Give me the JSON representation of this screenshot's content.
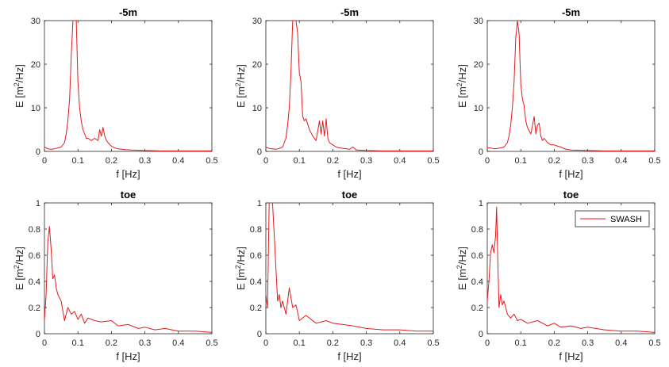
{
  "chart_data": [
    {
      "type": "line",
      "title": "-5m",
      "xlabel": "f [Hz]",
      "ylabel_base": "E [m",
      "ylabel_sup": "2",
      "ylabel_tail": "/Hz]",
      "xlim": [
        0,
        0.5
      ],
      "ylim": [
        0,
        30
      ],
      "xticks": [
        0,
        0.1,
        0.2,
        0.3,
        0.4,
        0.5
      ],
      "xticklabels": [
        "0",
        "0.1",
        "0.2",
        "0.3",
        "0.4",
        "0.5"
      ],
      "yticks": [
        0,
        10,
        20,
        30
      ],
      "yticklabels": [
        "0",
        "10",
        "20",
        "30"
      ],
      "grid": false,
      "legend": null,
      "series": [
        {
          "color": "#e41a1c",
          "x": [
            0,
            0.01,
            0.02,
            0.03,
            0.04,
            0.05,
            0.06,
            0.065,
            0.07,
            0.075,
            0.08,
            0.085,
            0.09,
            0.095,
            0.1,
            0.105,
            0.11,
            0.115,
            0.12,
            0.125,
            0.13,
            0.14,
            0.15,
            0.16,
            0.165,
            0.17,
            0.175,
            0.18,
            0.185,
            0.19,
            0.2,
            0.21,
            0.22,
            0.24,
            0.26,
            0.3,
            0.35,
            0.4,
            0.45,
            0.5
          ],
          "y": [
            1,
            0.6,
            0.5,
            0.6,
            0.8,
            1,
            2,
            4,
            7,
            12,
            22,
            30,
            30,
            30,
            16,
            10,
            7,
            5,
            4,
            3,
            3,
            2.5,
            3,
            2.5,
            5,
            3.5,
            5.5,
            3.5,
            2.5,
            2,
            1.2,
            0.8,
            0.6,
            0.4,
            0.3,
            0.2,
            0.1,
            0.1,
            0.1,
            0.1
          ]
        }
      ]
    },
    {
      "type": "line",
      "title": "-5m",
      "xlabel": "f [Hz]",
      "ylabel_base": "E [m",
      "ylabel_sup": "2",
      "ylabel_tail": "/Hz]",
      "xlim": [
        0,
        0.5
      ],
      "ylim": [
        0,
        30
      ],
      "xticks": [
        0,
        0.1,
        0.2,
        0.3,
        0.4,
        0.5
      ],
      "xticklabels": [
        "0",
        "0.1",
        "0.2",
        "0.3",
        "0.4",
        "0.5"
      ],
      "yticks": [
        0,
        10,
        20,
        30
      ],
      "yticklabels": [
        "0",
        "10",
        "20",
        "30"
      ],
      "grid": false,
      "legend": null,
      "series": [
        {
          "color": "#e41a1c",
          "x": [
            0,
            0.01,
            0.02,
            0.03,
            0.04,
            0.05,
            0.06,
            0.065,
            0.07,
            0.075,
            0.08,
            0.085,
            0.09,
            0.095,
            0.1,
            0.105,
            0.11,
            0.115,
            0.12,
            0.13,
            0.14,
            0.15,
            0.16,
            0.165,
            0.17,
            0.175,
            0.18,
            0.185,
            0.19,
            0.2,
            0.21,
            0.22,
            0.25,
            0.26,
            0.27,
            0.3,
            0.35,
            0.4,
            0.45,
            0.5
          ],
          "y": [
            1,
            0.7,
            0.6,
            0.5,
            0.7,
            1,
            3,
            6,
            10,
            18,
            30,
            30,
            30,
            27,
            18,
            16,
            8,
            7,
            7.5,
            5,
            3.5,
            2.5,
            7,
            4,
            7,
            3.5,
            7.5,
            3,
            2,
            1.5,
            1,
            0.8,
            0.5,
            1,
            0.3,
            0.2,
            0.1,
            0.1,
            0.1,
            0.1
          ]
        }
      ]
    },
    {
      "type": "line",
      "title": "-5m",
      "xlabel": "f [Hz]",
      "ylabel_base": "E [m",
      "ylabel_sup": "2",
      "ylabel_tail": "/Hz]",
      "xlim": [
        0,
        0.5
      ],
      "ylim": [
        0,
        30
      ],
      "xticks": [
        0,
        0.1,
        0.2,
        0.3,
        0.4,
        0.5
      ],
      "xticklabels": [
        "0",
        "0.1",
        "0.2",
        "0.3",
        "0.4",
        "0.5"
      ],
      "yticks": [
        0,
        10,
        20,
        30
      ],
      "yticklabels": [
        "0",
        "10",
        "20",
        "30"
      ],
      "grid": false,
      "legend": null,
      "series": [
        {
          "color": "#e41a1c",
          "x": [
            0,
            0.01,
            0.02,
            0.03,
            0.04,
            0.05,
            0.06,
            0.065,
            0.07,
            0.075,
            0.08,
            0.085,
            0.09,
            0.095,
            0.1,
            0.105,
            0.11,
            0.115,
            0.12,
            0.13,
            0.14,
            0.145,
            0.15,
            0.155,
            0.16,
            0.165,
            0.17,
            0.18,
            0.19,
            0.2,
            0.21,
            0.22,
            0.23,
            0.25,
            0.3,
            0.35,
            0.4,
            0.45,
            0.5
          ],
          "y": [
            0.8,
            0.8,
            0.6,
            0.7,
            0.8,
            1,
            2,
            3.5,
            6,
            10,
            16,
            26,
            30,
            27,
            15.5,
            12,
            10.5,
            7,
            5.5,
            4,
            8,
            4,
            6,
            6.5,
            3.5,
            2.5,
            3,
            2,
            1.5,
            1.5,
            1.2,
            1,
            0.6,
            0.3,
            0.2,
            0.1,
            0.1,
            0.1,
            0.1
          ]
        }
      ]
    },
    {
      "type": "line",
      "title": "toe",
      "xlabel": "f [Hz]",
      "ylabel_base": "E [m",
      "ylabel_sup": "2",
      "ylabel_tail": "/Hz]",
      "xlim": [
        0,
        0.5
      ],
      "ylim": [
        0,
        1
      ],
      "xticks": [
        0,
        0.1,
        0.2,
        0.3,
        0.4,
        0.5
      ],
      "xticklabels": [
        "0",
        "0.1",
        "0.2",
        "0.3",
        "0.4",
        "0.5"
      ],
      "yticks": [
        0,
        0.2,
        0.4,
        0.6,
        0.8,
        1
      ],
      "yticklabels": [
        "0",
        "0.2",
        "0.4",
        "0.6",
        "0.8",
        "1"
      ],
      "grid": false,
      "legend": null,
      "series": [
        {
          "color": "#e41a1c",
          "x": [
            0,
            0.005,
            0.01,
            0.015,
            0.02,
            0.025,
            0.03,
            0.035,
            0.04,
            0.05,
            0.06,
            0.07,
            0.08,
            0.09,
            0.1,
            0.11,
            0.12,
            0.13,
            0.15,
            0.17,
            0.2,
            0.22,
            0.25,
            0.28,
            0.3,
            0.33,
            0.36,
            0.4,
            0.45,
            0.5
          ],
          "y": [
            0.1,
            0.3,
            0.7,
            0.82,
            0.65,
            0.42,
            0.45,
            0.35,
            0.3,
            0.25,
            0.1,
            0.2,
            0.15,
            0.17,
            0.11,
            0.15,
            0.08,
            0.12,
            0.1,
            0.09,
            0.1,
            0.06,
            0.07,
            0.04,
            0.05,
            0.03,
            0.04,
            0.02,
            0.02,
            0.01
          ]
        }
      ]
    },
    {
      "type": "line",
      "title": "toe",
      "xlabel": "f [Hz]",
      "ylabel_base": "E [m",
      "ylabel_sup": "2",
      "ylabel_tail": "/Hz]",
      "xlim": [
        0,
        0.5
      ],
      "ylim": [
        0,
        1
      ],
      "xticks": [
        0,
        0.1,
        0.2,
        0.3,
        0.4,
        0.5
      ],
      "xticklabels": [
        "0",
        "0.1",
        "0.2",
        "0.3",
        "0.4",
        "0.5"
      ],
      "yticks": [
        0,
        0.2,
        0.4,
        0.6,
        0.8,
        1
      ],
      "yticklabels": [
        "0",
        "0.2",
        "0.4",
        "0.6",
        "0.8",
        "1"
      ],
      "grid": false,
      "legend": null,
      "series": [
        {
          "color": "#e41a1c",
          "x": [
            0,
            0.005,
            0.01,
            0.015,
            0.02,
            0.025,
            0.03,
            0.035,
            0.04,
            0.045,
            0.05,
            0.06,
            0.07,
            0.08,
            0.09,
            0.1,
            0.12,
            0.15,
            0.18,
            0.2,
            0.23,
            0.26,
            0.3,
            0.35,
            0.4,
            0.45,
            0.5
          ],
          "y": [
            0.3,
            0.2,
            1,
            1,
            1,
            0.75,
            0.5,
            0.25,
            0.3,
            0.2,
            0.25,
            0.15,
            0.35,
            0.2,
            0.22,
            0.1,
            0.14,
            0.08,
            0.1,
            0.08,
            0.07,
            0.06,
            0.04,
            0.03,
            0.03,
            0.02,
            0.02
          ]
        }
      ]
    },
    {
      "type": "line",
      "title": "toe",
      "xlabel": "f [Hz]",
      "ylabel_base": "E [m",
      "ylabel_sup": "2",
      "ylabel_tail": "/Hz]",
      "xlim": [
        0,
        0.5
      ],
      "ylim": [
        0,
        1
      ],
      "xticks": [
        0,
        0.1,
        0.2,
        0.3,
        0.4,
        0.5
      ],
      "xticklabels": [
        "0",
        "0.1",
        "0.2",
        "0.3",
        "0.4",
        "0.5"
      ],
      "yticks": [
        0,
        0.2,
        0.4,
        0.6,
        0.8,
        1
      ],
      "yticklabels": [
        "0",
        "0.2",
        "0.4",
        "0.6",
        "0.8",
        "1"
      ],
      "grid": false,
      "legend": {
        "position": "top-right",
        "entries": [
          {
            "name": "SWASH",
            "color": "#e41a1c"
          }
        ]
      },
      "series": [
        {
          "name": "SWASH",
          "color": "#e41a1c",
          "x": [
            0,
            0.005,
            0.01,
            0.015,
            0.02,
            0.025,
            0.028,
            0.03,
            0.035,
            0.04,
            0.045,
            0.05,
            0.06,
            0.07,
            0.08,
            0.09,
            0.1,
            0.12,
            0.15,
            0.18,
            0.2,
            0.22,
            0.25,
            0.28,
            0.3,
            0.35,
            0.4,
            0.45,
            0.5
          ],
          "y": [
            0.25,
            0.4,
            0.62,
            0.68,
            0.62,
            0.75,
            0.97,
            0.7,
            0.2,
            0.3,
            0.22,
            0.25,
            0.15,
            0.12,
            0.15,
            0.1,
            0.11,
            0.08,
            0.1,
            0.06,
            0.08,
            0.05,
            0.06,
            0.04,
            0.05,
            0.03,
            0.02,
            0.02,
            0.01
          ]
        }
      ]
    }
  ]
}
